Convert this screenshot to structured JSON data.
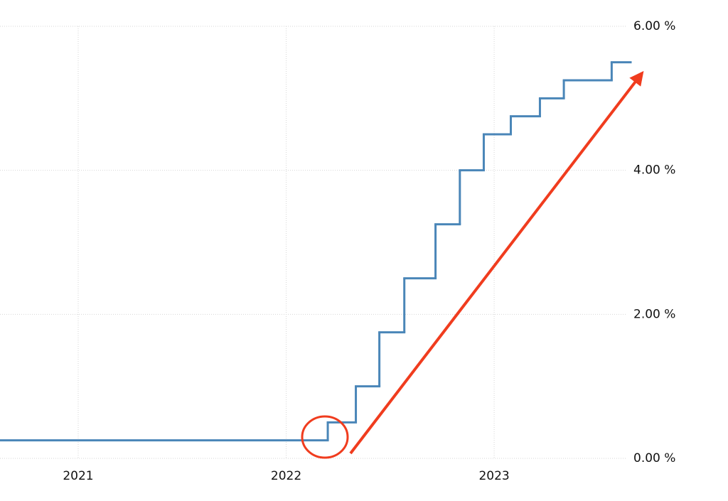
{
  "chart_data": {
    "type": "line",
    "step": "post",
    "color": "#4a86b8",
    "x": [
      2020.624,
      2022.2,
      2022.335,
      2022.448,
      2022.568,
      2022.718,
      2022.835,
      2022.95,
      2023.08,
      2023.22,
      2023.335,
      2023.565
    ],
    "values": [
      0.25,
      0.5,
      1.0,
      1.75,
      2.5,
      3.25,
      4.0,
      4.5,
      4.75,
      5.0,
      5.25,
      5.5
    ],
    "xlim": [
      2020.624,
      2023.656
    ],
    "xticks": [
      2021,
      2022,
      2023
    ],
    "ylim": [
      0,
      6
    ],
    "yticks": [
      {
        "value": 0,
        "label": "0.00 %"
      },
      {
        "value": 2,
        "label": "2.00 %"
      },
      {
        "value": 4,
        "label": "4.00 %"
      },
      {
        "value": 6,
        "label": "6.00 %"
      }
    ],
    "grid": true
  }
}
